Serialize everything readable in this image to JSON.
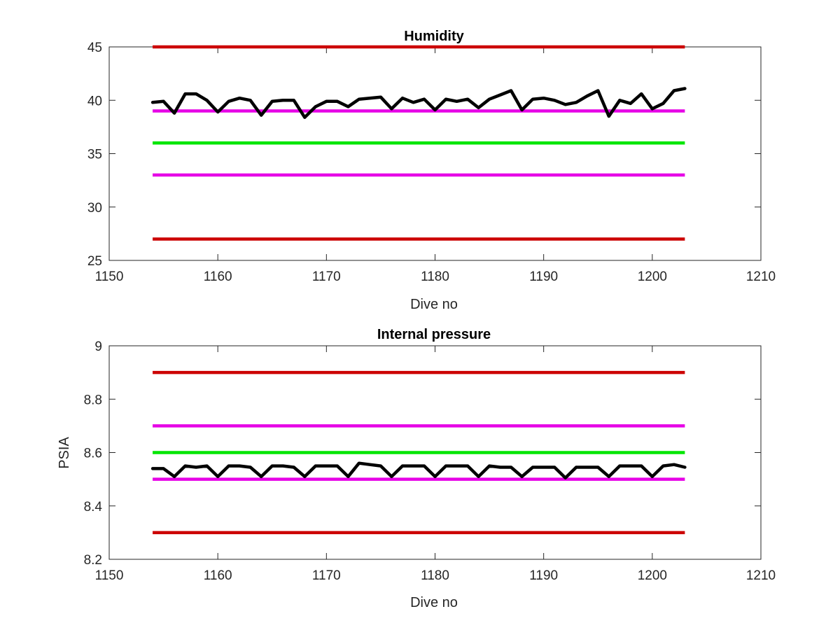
{
  "chart_data": [
    {
      "type": "line",
      "title": "Humidity",
      "xlabel": "Dive no",
      "ylabel": "",
      "xlim": [
        1150,
        1210
      ],
      "ylim": [
        25,
        45
      ],
      "xticks": [
        "1150",
        "1160",
        "1170",
        "1180",
        "1190",
        "1200",
        "1210"
      ],
      "yticks": [
        "25",
        "30",
        "35",
        "40",
        "45"
      ],
      "grid": false,
      "threshold_lines": [
        {
          "y": 45,
          "x": [
            1154,
            1203
          ],
          "color": "#cc0000"
        },
        {
          "y": 39,
          "x": [
            1154,
            1203
          ],
          "color": "#e600e6"
        },
        {
          "y": 36,
          "x": [
            1154,
            1203
          ],
          "color": "#00e600"
        },
        {
          "y": 33,
          "x": [
            1154,
            1203
          ],
          "color": "#e600e6"
        },
        {
          "y": 27,
          "x": [
            1154,
            1203
          ],
          "color": "#cc0000"
        }
      ],
      "series": [
        {
          "color": "#000000",
          "x": [
            1154,
            1155,
            1156,
            1157,
            1158,
            1159,
            1160,
            1161,
            1162,
            1163,
            1164,
            1165,
            1166,
            1167,
            1168,
            1169,
            1170,
            1171,
            1172,
            1173,
            1174,
            1175,
            1176,
            1177,
            1178,
            1179,
            1180,
            1181,
            1182,
            1183,
            1184,
            1185,
            1186,
            1187,
            1188,
            1189,
            1190,
            1191,
            1192,
            1193,
            1194,
            1195,
            1196,
            1197,
            1198,
            1199,
            1200,
            1201,
            1202,
            1203
          ],
          "values": [
            39.8,
            39.9,
            38.8,
            40.6,
            40.6,
            40.0,
            38.9,
            39.9,
            40.2,
            40.0,
            38.6,
            39.9,
            40.0,
            40.0,
            38.4,
            39.4,
            39.9,
            39.9,
            39.4,
            40.1,
            40.2,
            40.3,
            39.2,
            40.2,
            39.8,
            40.1,
            39.1,
            40.1,
            39.9,
            40.1,
            39.3,
            40.1,
            40.5,
            40.9,
            39.1,
            40.1,
            40.2,
            40.0,
            39.6,
            39.8,
            40.4,
            40.9,
            38.5,
            40.0,
            39.7,
            40.6,
            39.2,
            39.7,
            40.9,
            41.1
          ]
        }
      ]
    },
    {
      "type": "line",
      "title": "Internal pressure",
      "xlabel": "Dive no",
      "ylabel": "PSIA",
      "xlim": [
        1150,
        1210
      ],
      "ylim": [
        8.2,
        9
      ],
      "xticks": [
        "1150",
        "1160",
        "1170",
        "1180",
        "1190",
        "1200",
        "1210"
      ],
      "yticks": [
        "8.2",
        "8.4",
        "8.6",
        "8.8",
        "9"
      ],
      "grid": false,
      "threshold_lines": [
        {
          "y": 8.9,
          "x": [
            1154,
            1203
          ],
          "color": "#cc0000"
        },
        {
          "y": 8.7,
          "x": [
            1154,
            1203
          ],
          "color": "#e600e6"
        },
        {
          "y": 8.6,
          "x": [
            1154,
            1203
          ],
          "color": "#00e600"
        },
        {
          "y": 8.5,
          "x": [
            1154,
            1203
          ],
          "color": "#e600e6"
        },
        {
          "y": 8.3,
          "x": [
            1154,
            1203
          ],
          "color": "#cc0000"
        }
      ],
      "series": [
        {
          "color": "#000000",
          "x": [
            1154,
            1155,
            1156,
            1157,
            1158,
            1159,
            1160,
            1161,
            1162,
            1163,
            1164,
            1165,
            1166,
            1167,
            1168,
            1169,
            1170,
            1171,
            1172,
            1173,
            1174,
            1175,
            1176,
            1177,
            1178,
            1179,
            1180,
            1181,
            1182,
            1183,
            1184,
            1185,
            1186,
            1187,
            1188,
            1189,
            1190,
            1191,
            1192,
            1193,
            1194,
            1195,
            1196,
            1197,
            1198,
            1199,
            1200,
            1201,
            1202,
            1203
          ],
          "values": [
            8.54,
            8.54,
            8.51,
            8.55,
            8.545,
            8.55,
            8.51,
            8.55,
            8.55,
            8.545,
            8.51,
            8.55,
            8.55,
            8.545,
            8.51,
            8.55,
            8.55,
            8.55,
            8.51,
            8.56,
            8.555,
            8.55,
            8.51,
            8.55,
            8.55,
            8.55,
            8.51,
            8.55,
            8.55,
            8.55,
            8.51,
            8.55,
            8.545,
            8.545,
            8.51,
            8.545,
            8.545,
            8.545,
            8.505,
            8.545,
            8.545,
            8.545,
            8.51,
            8.55,
            8.55,
            8.55,
            8.51,
            8.55,
            8.555,
            8.545
          ]
        }
      ]
    }
  ]
}
